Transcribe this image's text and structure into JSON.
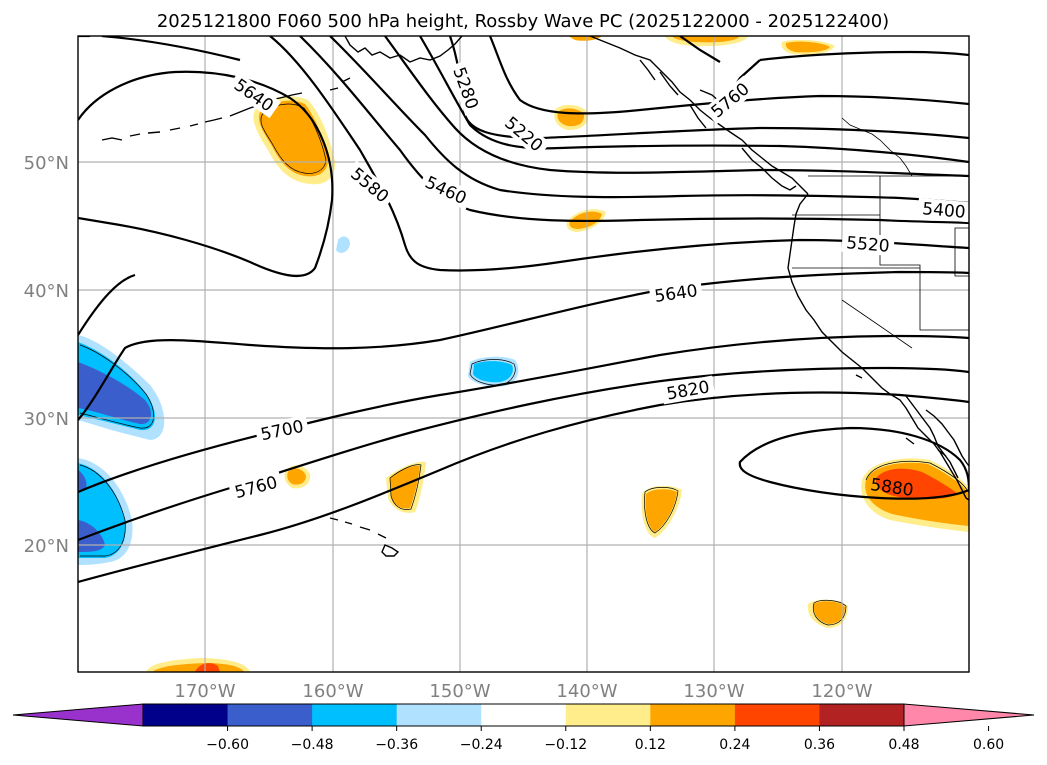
{
  "title": "2025121800 F060 500 hPa height, Rossby Wave PC (2025122000 - 2025122400)",
  "map": {
    "lat_labels": [
      "50°N",
      "40°N",
      "30°N",
      "20°N"
    ],
    "lon_labels": [
      "170°W",
      "160°W",
      "150°W",
      "140°W",
      "130°W",
      "120°W"
    ],
    "contour_labels": [
      "5640",
      "5580",
      "5460",
      "5280",
      "5220",
      "5760",
      "5400",
      "5520",
      "5640",
      "5820",
      "5700",
      "5760",
      "5880"
    ]
  },
  "colorbar": {
    "colors": [
      "#9932cc",
      "#00008b",
      "#3a5fcd",
      "#00bfff",
      "#b0e2ff",
      "#ffffff",
      "#ffec8b",
      "#ffa500",
      "#ff4500",
      "#b22222",
      "#ff88aa"
    ],
    "tick_labels": [
      "−0.60",
      "−0.48",
      "−0.36",
      "−0.24",
      "−0.12",
      "0.12",
      "0.24",
      "0.36",
      "0.48",
      "0.60"
    ]
  }
}
